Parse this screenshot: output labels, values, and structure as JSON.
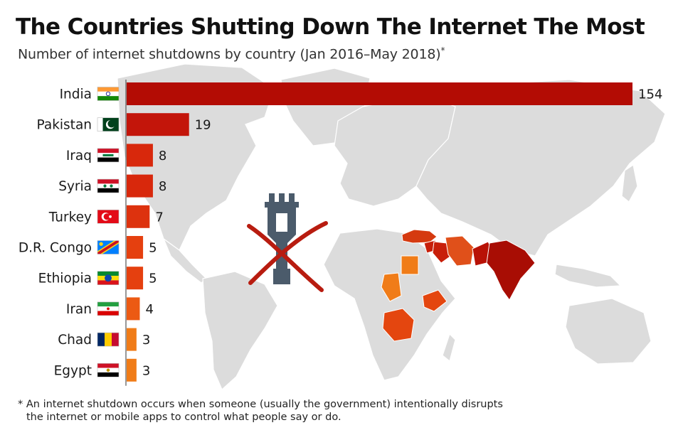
{
  "title": "The Countries Shutting Down The Internet The Most",
  "subtitle": "Number of internet shutdowns by country (Jan 2016–May 2018)",
  "subtitle_marker": "*",
  "footnote": {
    "line1": "* An internet shutdown occurs when someone (usually the government) intentionally disrupts",
    "line2": "the internet or mobile apps to control what people say or do."
  },
  "chart_data": {
    "type": "bar",
    "orientation": "horizontal",
    "categories": [
      "India",
      "Pakistan",
      "Iraq",
      "Syria",
      "Turkey",
      "D.R. Congo",
      "Ethiopia",
      "Iran",
      "Chad",
      "Egypt"
    ],
    "values": [
      154,
      19,
      8,
      8,
      7,
      5,
      5,
      4,
      3,
      3
    ],
    "bar_colors": [
      "#b30c04",
      "#c3150a",
      "#d8280c",
      "#d8280c",
      "#dd320e",
      "#e5400f",
      "#e5400f",
      "#ec5a13",
      "#f07c18",
      "#f07c18"
    ],
    "flag_icons": [
      "flag-india-icon",
      "flag-pakistan-icon",
      "flag-iraq-icon",
      "flag-syria-icon",
      "flag-turkey-icon",
      "flag-drcongo-icon",
      "flag-ethiopia-icon",
      "flag-iran-icon",
      "flag-chad-icon",
      "flag-egypt-icon"
    ],
    "xlim": [
      0,
      154
    ],
    "grid": false,
    "data_labels": true,
    "background": "world map with highlighted countries"
  },
  "colors": {
    "map_land": "#dcdcdc",
    "map_border": "#ffffff",
    "cross": "#b81c10",
    "icon_blue": "#4b5b6b"
  },
  "icons": {
    "center": "internet-disconnect-icon"
  }
}
